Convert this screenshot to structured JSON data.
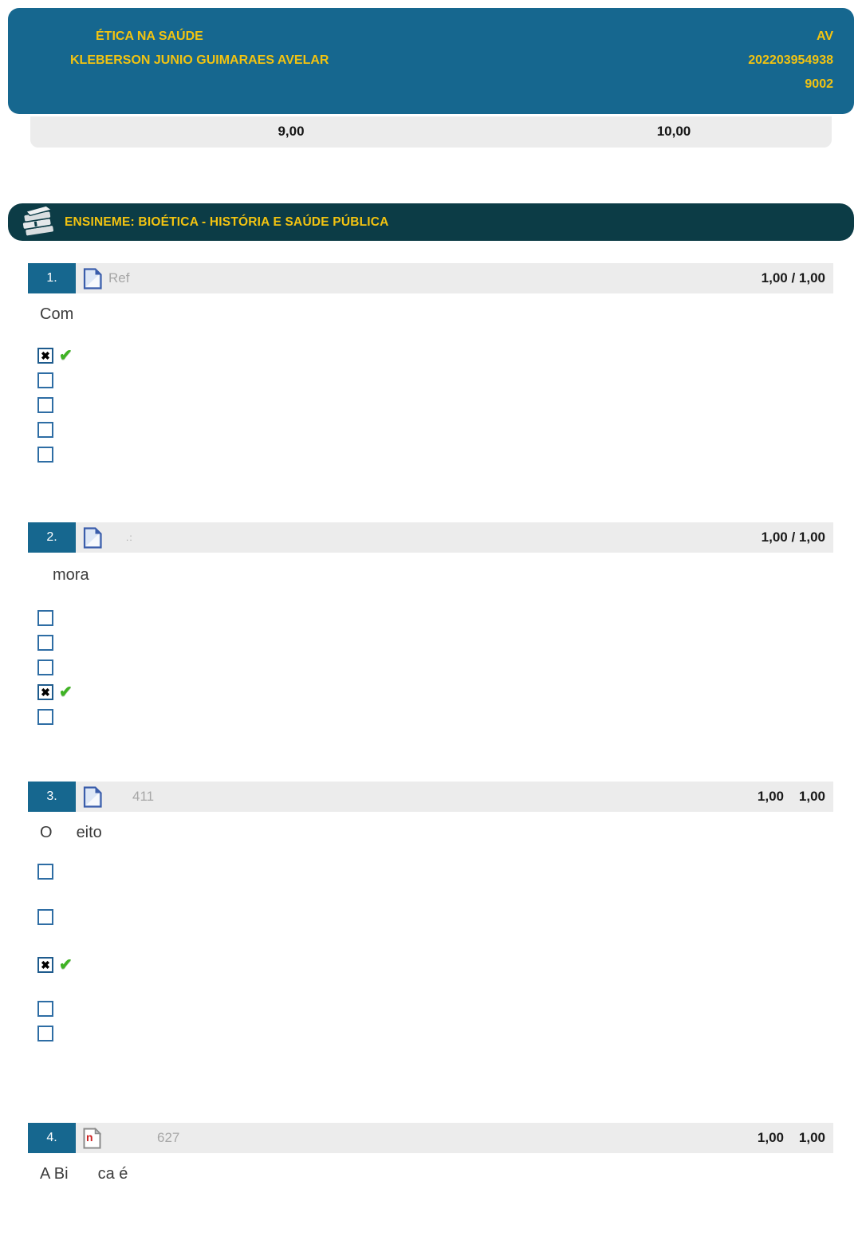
{
  "header": {
    "course_title": "ÉTICA NA SAÚDE",
    "student_name": "KLEBERSON JUNIO GUIMARAES AVELAR",
    "assessment_label": "AV",
    "enrollment_number": "202203954938",
    "class_code": "9002"
  },
  "score_summary": {
    "grade": "9,00",
    "max_grade": "10,00"
  },
  "lesson_banner": {
    "icon": "books-stack-icon",
    "title": "ENSINEME: BIOÉTICA - HISTÓRIA E SAÚDE PÚBLICA"
  },
  "glyphs": {
    "checked_mark": "✖",
    "correct_check": "✔"
  },
  "questions": [
    {
      "number": "1.",
      "icon": "document-icon",
      "label": "Ref",
      "score": "1,00 / 1,00",
      "text_fragments": [
        "Com"
      ],
      "options": [
        "checked-correct",
        "empty",
        "empty",
        "empty",
        "empty"
      ]
    },
    {
      "number": "2.",
      "icon": "document-icon",
      "label": ".:",
      "score": "1,00 / 1,00",
      "text_fragments": [
        "mora"
      ],
      "options": [
        "empty",
        "empty",
        "empty",
        "checked-correct",
        "empty"
      ]
    },
    {
      "number": "3.",
      "icon": "document-icon",
      "label": "411",
      "score": "1,00    1,00",
      "text_fragments": [
        "O",
        "eito"
      ],
      "options": [
        "empty",
        "empty",
        "checked-correct",
        "empty",
        "empty"
      ]
    },
    {
      "number": "4.",
      "icon": "document-broken-icon",
      "label": "627",
      "score": "1,00    1,00",
      "text_fragments": [
        "A Bi",
        "ca é"
      ],
      "options": []
    }
  ],
  "colors": {
    "header_blue": "#16678F",
    "accent_yellow": "#F2C311",
    "banner_teal": "#0C3C46",
    "bar_gray": "#ECECEC",
    "checkbox_blue": "#2E6DA4",
    "correct_green": "#3FB324"
  }
}
